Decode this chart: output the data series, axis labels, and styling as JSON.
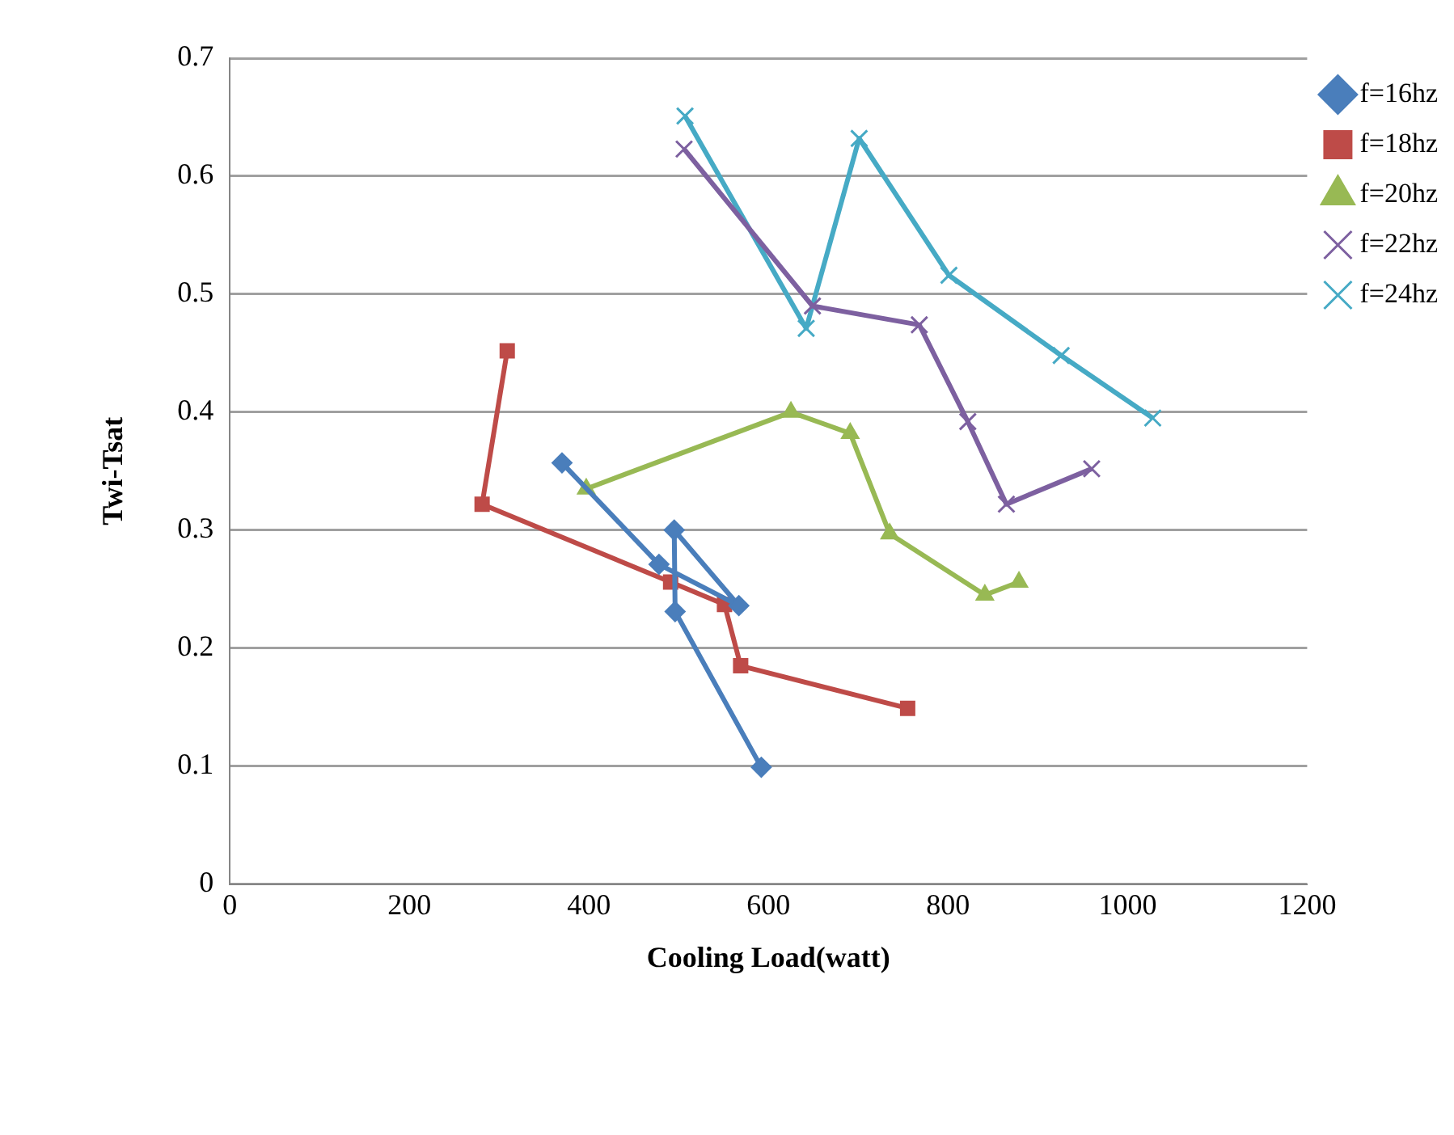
{
  "chart_data": {
    "type": "line",
    "xlabel": "Cooling Load(watt)",
    "ylabel": "Twi-Tsat",
    "xlim": [
      0,
      1200
    ],
    "xticks": [
      0,
      200,
      400,
      600,
      800,
      1000,
      1200
    ],
    "ylim": [
      0,
      0.7
    ],
    "yticks": [
      0,
      0.1,
      0.2,
      0.3,
      0.4,
      0.5,
      0.6,
      0.7
    ],
    "grid": "y",
    "legend": "right",
    "line_style": "solid",
    "series": [
      {
        "name": "f=16hz",
        "color": "#4a7ebb",
        "marker": "diamond",
        "x": [
          370,
          478,
          567,
          495,
          496,
          592
        ],
        "values": [
          0.357,
          0.271,
          0.236,
          0.3,
          0.231,
          0.099
        ]
      },
      {
        "name": "f=18hz",
        "color": "#be4b48",
        "marker": "square",
        "x": [
          309,
          281,
          491,
          551,
          569,
          755
        ],
        "values": [
          0.452,
          0.322,
          0.256,
          0.237,
          0.185,
          0.149
        ]
      },
      {
        "name": "f=20hz",
        "color": "#98b954",
        "marker": "triangle",
        "x": [
          397,
          625,
          691,
          735,
          841,
          879
        ],
        "values": [
          0.335,
          0.4,
          0.382,
          0.297,
          0.245,
          0.256
        ]
      },
      {
        "name": "f=22hz",
        "color": "#7d60a0",
        "marker": "cross",
        "x": [
          506,
          649,
          768,
          822,
          865,
          960
        ],
        "values": [
          0.623,
          0.49,
          0.474,
          0.392,
          0.322,
          0.352
        ]
      },
      {
        "name": "f=24hz",
        "color": "#46aac5",
        "marker": "cross",
        "x": [
          507,
          642,
          701,
          801,
          926,
          1028
        ],
        "values": [
          0.651,
          0.471,
          0.632,
          0.516,
          0.448,
          0.395
        ]
      }
    ]
  }
}
